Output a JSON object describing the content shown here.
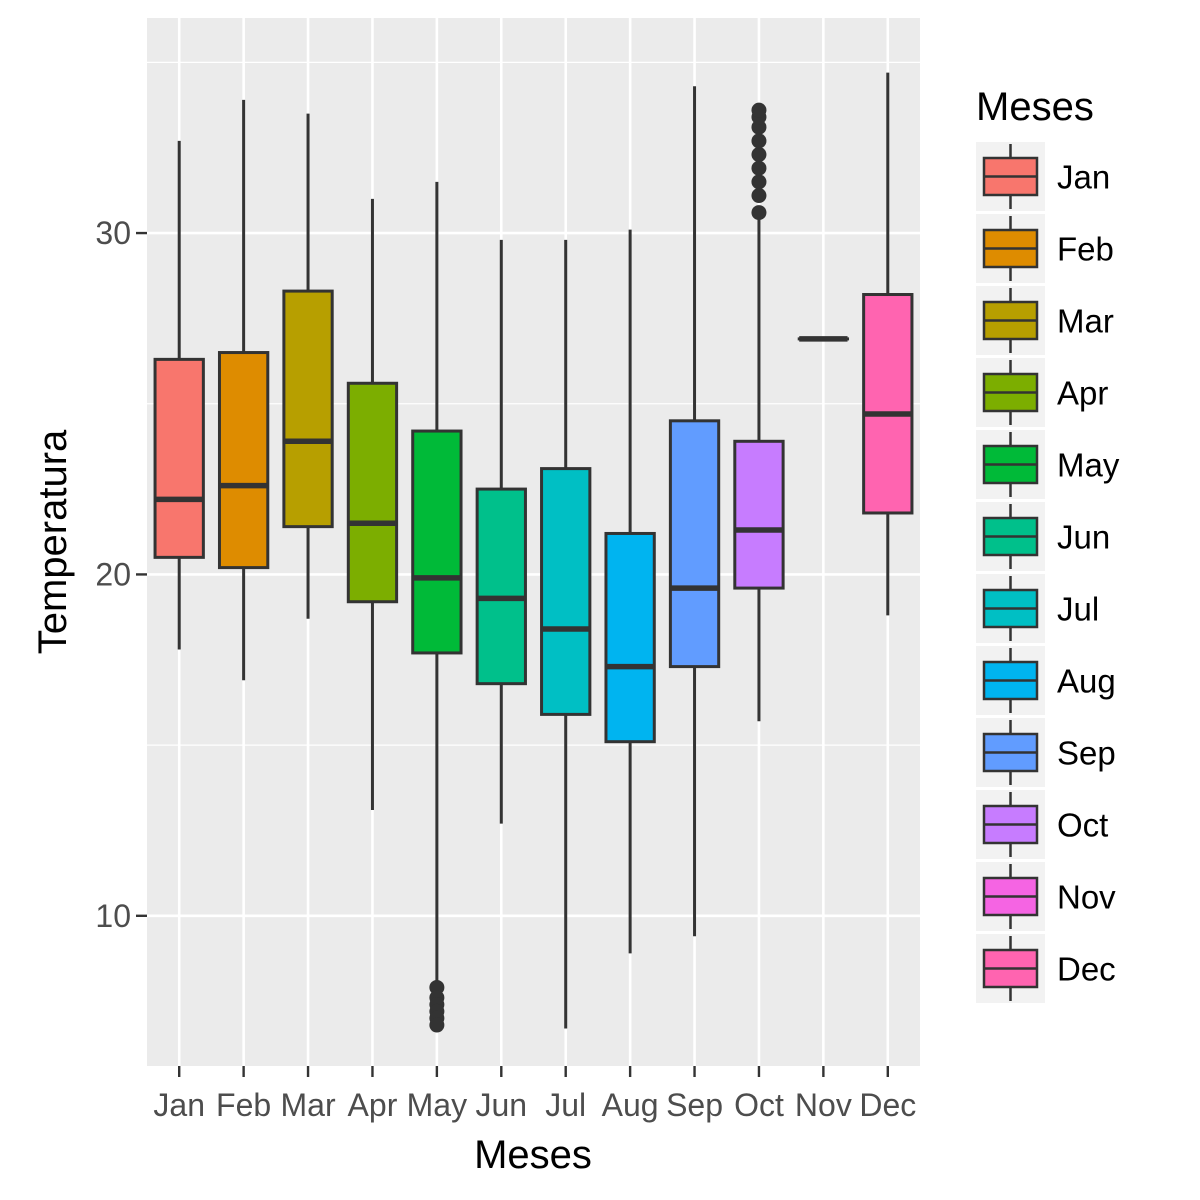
{
  "chart_data": {
    "type": "boxplot",
    "xlabel": "Meses",
    "ylabel": "Temperatura",
    "ylim": [
      5.6,
      36.3
    ],
    "yticks": [
      10,
      20,
      30
    ],
    "grid": true,
    "legend": {
      "title": "Meses",
      "position": "right"
    },
    "categories": [
      "Jan",
      "Feb",
      "Mar",
      "Apr",
      "May",
      "Jun",
      "Jul",
      "Aug",
      "Sep",
      "Oct",
      "Nov",
      "Dec"
    ],
    "boxes": [
      {
        "label": "Jan",
        "color": "#F8766D",
        "min": 17.8,
        "q1": 20.5,
        "median": 22.2,
        "q3": 26.3,
        "max": 32.7,
        "outliers": []
      },
      {
        "label": "Feb",
        "color": "#DE8C00",
        "min": 16.9,
        "q1": 20.2,
        "median": 22.6,
        "q3": 26.5,
        "max": 33.9,
        "outliers": []
      },
      {
        "label": "Mar",
        "color": "#B79F00",
        "min": 18.7,
        "q1": 21.4,
        "median": 23.9,
        "q3": 28.3,
        "max": 33.5,
        "outliers": []
      },
      {
        "label": "Apr",
        "color": "#7CAE00",
        "min": 13.1,
        "q1": 19.2,
        "median": 21.5,
        "q3": 25.6,
        "max": 31.0,
        "outliers": []
      },
      {
        "label": "May",
        "color": "#00BA38",
        "min": 7.6,
        "q1": 17.7,
        "median": 19.9,
        "q3": 24.2,
        "max": 31.5,
        "outliers": [
          7.9,
          7.6,
          7.4,
          7.2,
          7.0,
          6.8
        ]
      },
      {
        "label": "Jun",
        "color": "#00C08B",
        "min": 12.7,
        "q1": 16.8,
        "median": 19.3,
        "q3": 22.5,
        "max": 29.8,
        "outliers": []
      },
      {
        "label": "Jul",
        "color": "#00BFC4",
        "min": 6.7,
        "q1": 15.9,
        "median": 18.4,
        "q3": 23.1,
        "max": 29.8,
        "outliers": []
      },
      {
        "label": "Aug",
        "color": "#00B4F0",
        "min": 8.9,
        "q1": 15.1,
        "median": 17.3,
        "q3": 21.2,
        "max": 30.1,
        "outliers": []
      },
      {
        "label": "Sep",
        "color": "#619CFF",
        "min": 9.4,
        "q1": 17.3,
        "median": 19.6,
        "q3": 24.5,
        "max": 34.3,
        "outliers": []
      },
      {
        "label": "Oct",
        "color": "#C77CFF",
        "min": 15.7,
        "q1": 19.6,
        "median": 21.3,
        "q3": 23.9,
        "max": 30.6,
        "outliers": [
          30.6,
          31.1,
          31.5,
          31.9,
          32.3,
          32.7,
          33.1,
          33.4,
          33.6
        ]
      },
      {
        "label": "Nov",
        "color": "#F564E3",
        "min": 26.9,
        "q1": 26.9,
        "median": 26.9,
        "q3": 26.9,
        "max": 26.9,
        "outliers": []
      },
      {
        "label": "Dec",
        "color": "#FF64B0",
        "min": 18.8,
        "q1": 21.8,
        "median": 24.7,
        "q3": 28.2,
        "max": 34.7,
        "outliers": []
      }
    ]
  }
}
